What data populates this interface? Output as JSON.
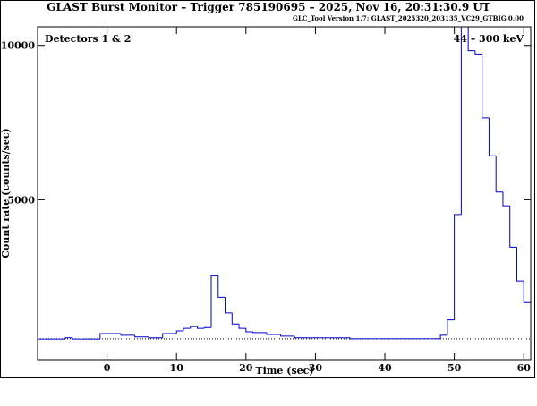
{
  "chart_data": {
    "type": "histogram",
    "title": "GLAST Burst Monitor  –  Trigger 785190695  –  2025, Nov 16, 20:31:30.9 UT",
    "subtitle": "GLC_Tool Version 1.7; GLAST_2025320_203135_VC29_GTBIG.0.00",
    "annotations": [
      "Detectors 1 & 2",
      "44 – 300 keV"
    ],
    "x_label": "Time (sec)",
    "y_label": "Count rate (counts/sec)",
    "color": "#0000cc",
    "bins": [
      -10,
      -9,
      -8,
      -7,
      -6,
      -5,
      -4,
      -3,
      -2,
      -1,
      0,
      1,
      2,
      3,
      4,
      5,
      6,
      7,
      8,
      9,
      10,
      11,
      12,
      13,
      14,
      15,
      16,
      17,
      18,
      19,
      20,
      21,
      22,
      23,
      24,
      25,
      26,
      27,
      28,
      29,
      30,
      31,
      32,
      33,
      34,
      35,
      36,
      37,
      38,
      39,
      40,
      41,
      42,
      43,
      44,
      45,
      46,
      47,
      48,
      49,
      50,
      51,
      52,
      53,
      54,
      55,
      56,
      57,
      58,
      59,
      60,
      61
    ],
    "counts": [
      490,
      490,
      490,
      490,
      530,
      490,
      490,
      490,
      490,
      670,
      670,
      670,
      615,
      615,
      560,
      560,
      530,
      530,
      670,
      670,
      755,
      840,
      895,
      840,
      865,
      2540,
      1845,
      1340,
      980,
      840,
      725,
      700,
      700,
      640,
      640,
      585,
      585,
      530,
      530,
      530,
      530,
      530,
      530,
      530,
      530,
      500,
      500,
      500,
      500,
      500,
      500,
      500,
      500,
      500,
      500,
      500,
      500,
      500,
      615,
      1115,
      4525,
      10600,
      9830,
      9720,
      7650,
      6425,
      5250,
      4805,
      3465,
      2375,
      1675
    ],
    "background_level": 500,
    "xlim": [
      -10,
      61
    ],
    "ylim": [
      -200,
      10600
    ],
    "xticks": [
      0,
      10,
      20,
      30,
      40,
      50,
      60
    ],
    "yticks": [
      5000,
      10000
    ]
  }
}
